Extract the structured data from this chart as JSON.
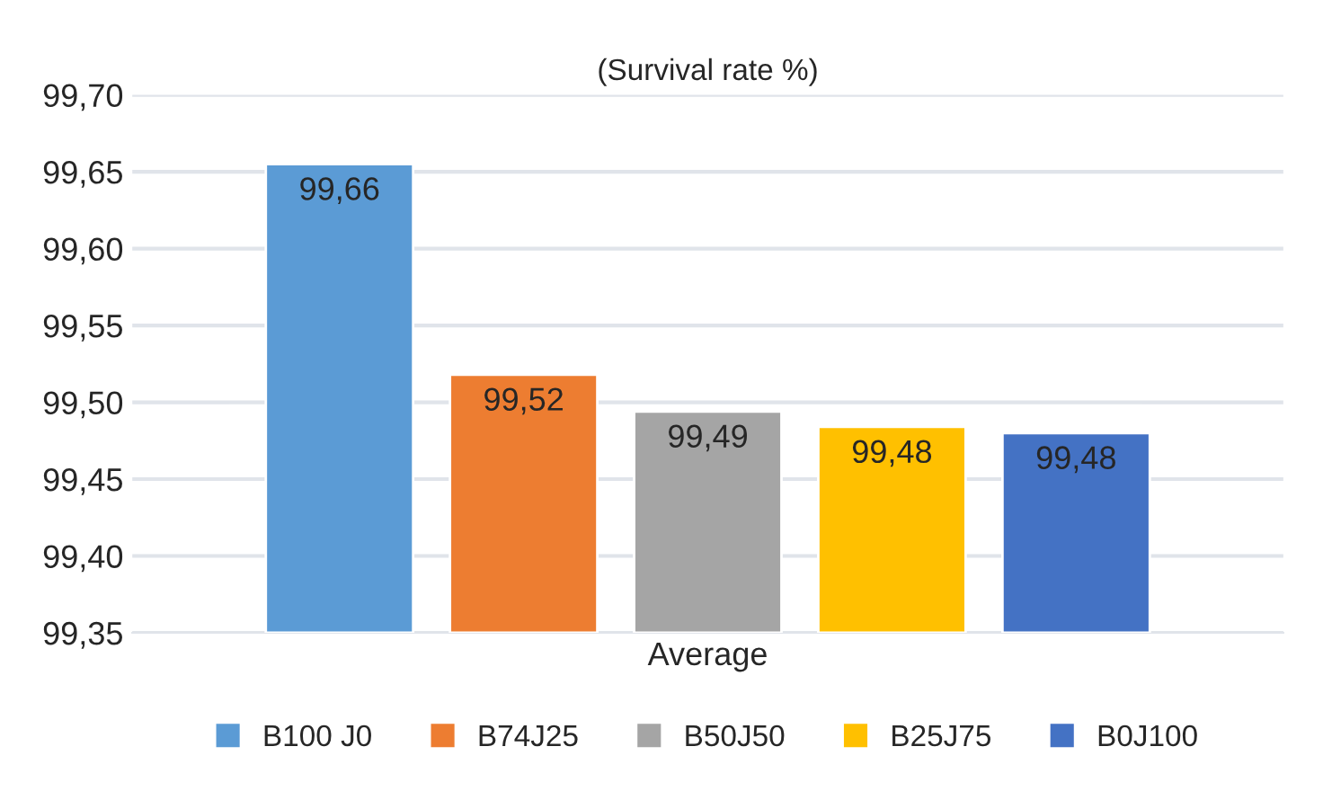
{
  "chart_data": {
    "type": "bar",
    "title": "(Survival rate %)",
    "categories": [
      "Average"
    ],
    "series": [
      {
        "name": "B100 J0",
        "color": "#5b9bd5",
        "values": [
          99.655
        ],
        "value_labels": [
          "99,66"
        ]
      },
      {
        "name": "B74J25",
        "color": "#ed7d31",
        "values": [
          99.518
        ],
        "value_labels": [
          "99,52"
        ]
      },
      {
        "name": "B50J50",
        "color": "#a5a5a5",
        "values": [
          99.494
        ],
        "value_labels": [
          "99,49"
        ]
      },
      {
        "name": "B25J75",
        "color": "#ffc000",
        "values": [
          99.484
        ],
        "value_labels": [
          "99,48"
        ]
      },
      {
        "name": "B0J100",
        "color": "#4472c4",
        "values": [
          99.48
        ],
        "value_labels": [
          "99,48"
        ]
      }
    ],
    "ylim": [
      99.35,
      99.7
    ],
    "yticks": [
      {
        "value": 99.35,
        "label": "99,35"
      },
      {
        "value": 99.4,
        "label": "99,40"
      },
      {
        "value": 99.45,
        "label": "99,45"
      },
      {
        "value": 99.5,
        "label": "99,50"
      },
      {
        "value": 99.55,
        "label": "99,55"
      },
      {
        "value": 99.6,
        "label": "99,60"
      },
      {
        "value": 99.65,
        "label": "99,65"
      },
      {
        "value": 99.7,
        "label": "99,70"
      }
    ],
    "grid": "y",
    "legend": "bottom"
  }
}
